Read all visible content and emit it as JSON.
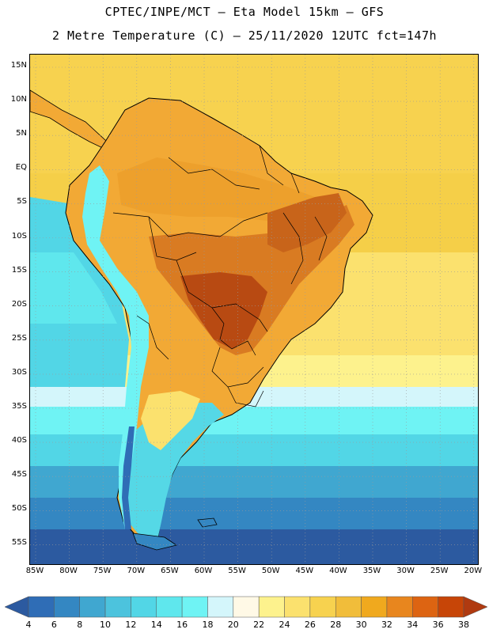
{
  "header": {
    "title_line1": "CPTEC/INPE/MCT –  Eta Model 15km – GFS",
    "title_line2": "2 Metre Temperature (C) – 25/11/2020 12UTC fct=147h"
  },
  "map": {
    "variable": "2 Metre Temperature",
    "units": "C",
    "latitude_labels": [
      "15N",
      "10N",
      "5N",
      "EQ",
      "5S",
      "10S",
      "15S",
      "20S",
      "25S",
      "30S",
      "35S",
      "40S",
      "45S",
      "50S",
      "55S"
    ],
    "longitude_labels": [
      "85W",
      "80W",
      "75W",
      "70W",
      "65W",
      "60W",
      "55W",
      "50W",
      "45W",
      "40W",
      "35W",
      "30W",
      "25W",
      "20W"
    ],
    "gridlines": "dotted",
    "palette": {
      "land_warm": "#f2a935",
      "land_hot": "#c8641a",
      "land_hottest": "#b84a12",
      "andes_cold": "#55d8e6",
      "ocean_north": "#f5cf48",
      "ocean_cold": "#2b5fa8"
    }
  },
  "colorbar": {
    "levels": [
      "4",
      "6",
      "8",
      "10",
      "12",
      "14",
      "16",
      "18",
      "20",
      "22",
      "24",
      "26",
      "28",
      "30",
      "32",
      "34",
      "36",
      "38"
    ],
    "colors": [
      "#2c5aa0",
      "#2f6db6",
      "#3487c2",
      "#40a7d0",
      "#4cc3dd",
      "#52d6e6",
      "#5fe7ed",
      "#6ff3f4",
      "#d4f6fb",
      "#fff9e6",
      "#fdf28d",
      "#fbe16e",
      "#f7d24f",
      "#f1bd3a",
      "#f0a91e",
      "#e8861e",
      "#dd6412",
      "#c74507",
      "#b03a10"
    ]
  }
}
